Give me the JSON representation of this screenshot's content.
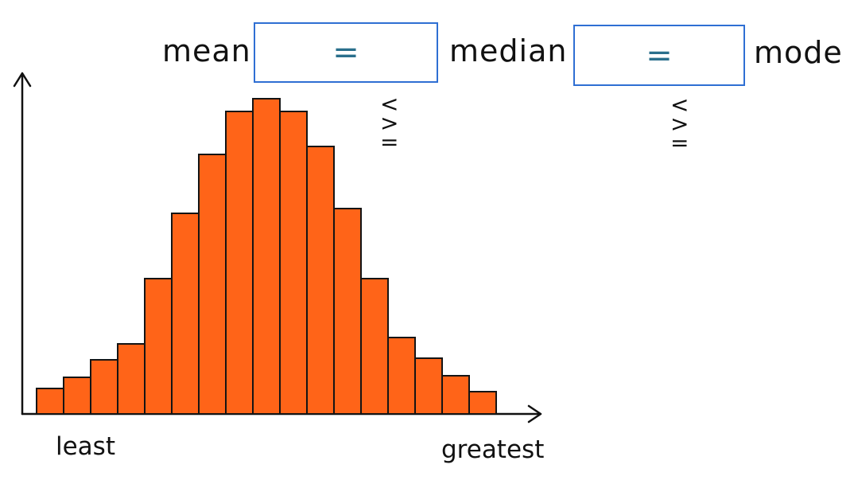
{
  "comparison": {
    "left_term": "mean",
    "middle_term": "median",
    "right_term": "mode",
    "left_answer": "=",
    "right_answer": "=",
    "left_choices": [
      "<",
      ">",
      "="
    ],
    "right_choices": [
      "<",
      ">",
      "="
    ]
  },
  "chart_data": {
    "type": "bar",
    "values": [
      1.6,
      2.3,
      3.4,
      4.4,
      8.5,
      12.6,
      16.3,
      19.0,
      19.8,
      19.0,
      16.8,
      12.9,
      8.5,
      4.8,
      3.5,
      2.4,
      1.4
    ],
    "xlabel_left": "least",
    "xlabel_right": "greatest",
    "ylim": [
      0,
      22
    ],
    "colors": {
      "bars": "#ff6418",
      "outline": "#141414",
      "answer_box": "#2f6fd3",
      "answer_text": "#2a6f8c"
    }
  }
}
